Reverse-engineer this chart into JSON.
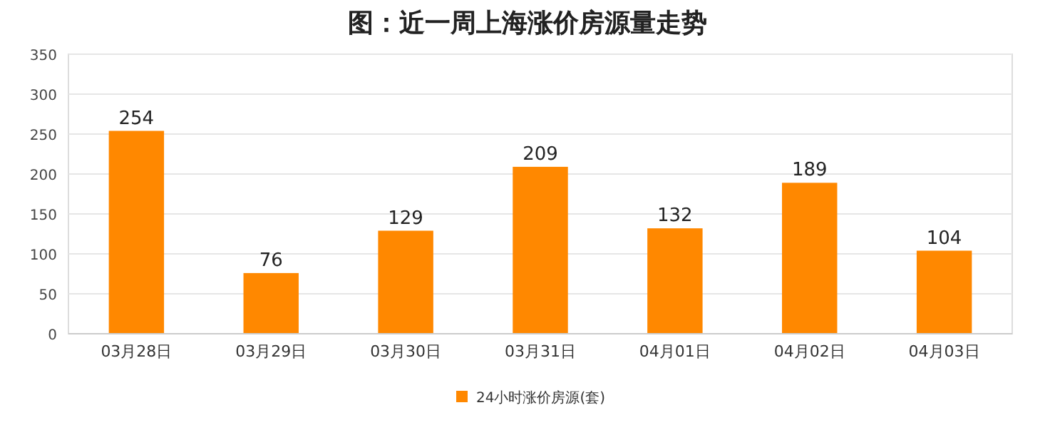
{
  "chart_data": {
    "type": "bar",
    "title": "图：近一周上海涨价房源量走势",
    "categories": [
      "03月28日",
      "03月29日",
      "03月30日",
      "03月31日",
      "04月01日",
      "04月02日",
      "04月03日"
    ],
    "series": [
      {
        "name": "24小时涨价房源(套)",
        "color": "#ff8800",
        "values": [
          254,
          76,
          129,
          209,
          132,
          189,
          104
        ]
      }
    ],
    "ylim": [
      0,
      350
    ],
    "yticks": [
      0,
      50,
      100,
      150,
      200,
      250,
      300,
      350
    ],
    "grid": "y",
    "data_labels": true,
    "legend": "bottom"
  }
}
